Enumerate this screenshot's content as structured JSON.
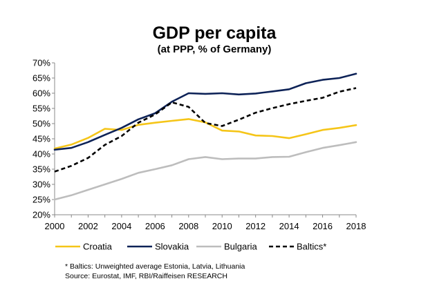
{
  "chart_data": {
    "type": "line",
    "title": "GDP per capita",
    "subtitle": "(at PPP, % of Germany)",
    "xlabel": "",
    "ylabel": "",
    "x": [
      2000,
      2001,
      2002,
      2003,
      2004,
      2005,
      2006,
      2007,
      2008,
      2009,
      2010,
      2011,
      2012,
      2013,
      2014,
      2015,
      2016,
      2017,
      2018
    ],
    "xticks": [
      "2000",
      "2002",
      "2004",
      "2006",
      "2008",
      "2010",
      "2012",
      "2014",
      "2016",
      "2018"
    ],
    "yticks": [
      "20%",
      "25%",
      "30%",
      "35%",
      "40%",
      "45%",
      "50%",
      "55%",
      "60%",
      "65%",
      "70%"
    ],
    "ylim": [
      20,
      70
    ],
    "xlim": [
      2000,
      2018
    ],
    "grid": false,
    "legend_position": "bottom",
    "series": [
      {
        "name": "Croatia",
        "color": "#f5c518",
        "dash": "solid",
        "values": [
          41.8,
          43.1,
          45.3,
          48.3,
          47.9,
          49.6,
          50.3,
          50.9,
          51.5,
          50.4,
          47.7,
          47.4,
          46.1,
          45.9,
          45.2,
          46.5,
          47.9,
          48.6,
          49.5
        ]
      },
      {
        "name": "Slovakia",
        "color": "#0d2257",
        "dash": "solid",
        "values": [
          41.4,
          42.0,
          43.9,
          46.3,
          48.6,
          51.4,
          53.4,
          57.2,
          60.0,
          59.8,
          60.0,
          59.6,
          59.9,
          60.6,
          61.3,
          63.3,
          64.4,
          65.0,
          66.4
        ]
      },
      {
        "name": "Bulgaria",
        "color": "#bdbdbd",
        "dash": "solid",
        "values": [
          25.0,
          26.4,
          28.2,
          30.0,
          31.8,
          33.8,
          35.0,
          36.3,
          38.3,
          39.0,
          38.3,
          38.5,
          38.5,
          39.0,
          39.1,
          40.6,
          42.0,
          42.9,
          43.9
        ]
      },
      {
        "name": "Baltics*",
        "color": "#000000",
        "dash": "dashed",
        "values": [
          34.2,
          36.1,
          38.7,
          43.0,
          45.9,
          50.3,
          53.0,
          57.0,
          55.5,
          50.2,
          49.2,
          51.3,
          53.6,
          55.1,
          56.4,
          57.5,
          58.5,
          60.5,
          61.7
        ]
      }
    ],
    "footnotes": [
      "* Baltics: Unweighted average Estonia, Latvia, Lithuania",
      "Source: Eurostat, IMF, RBI/Raiffeisen RESEARCH"
    ]
  }
}
